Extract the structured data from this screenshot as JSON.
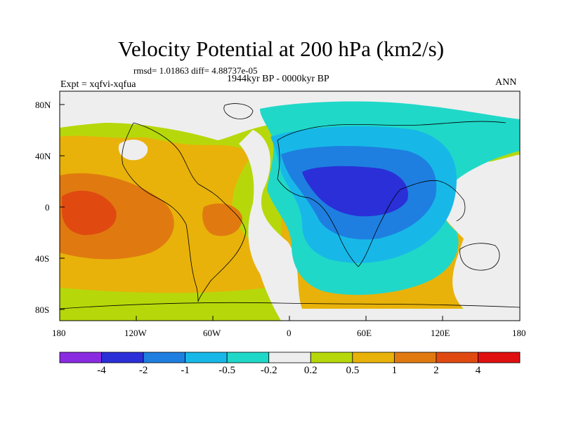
{
  "title": "Velocity Potential at 200 hPa (km2/s)",
  "stats": "rmsd= 1.01863 diff= 4.88737e-05",
  "experiment": "Expt = xqfvi-xqfua",
  "period": "1944kyr BP - 0000kyr BP",
  "season": "ANN",
  "lat_labels": [
    "80N",
    "40N",
    "0",
    "40S",
    "80S"
  ],
  "lon_labels": [
    "180",
    "120W",
    "60W",
    "0",
    "60E",
    "120E",
    "180"
  ],
  "colorbar": {
    "labels": [
      "-4",
      "-2",
      "-1",
      "-0.5",
      "-0.2",
      "0.2",
      "0.5",
      "1",
      "2",
      "4"
    ],
    "colors": [
      "#8a2be2",
      "#2a2fd8",
      "#1e7fe0",
      "#17b8e8",
      "#20d8c8",
      "#eeeeee",
      "#b6d80a",
      "#e8b20a",
      "#e07a10",
      "#e04a10",
      "#e01010"
    ]
  },
  "field_colors": {
    "land_outline": "#000000",
    "neutral": "#eeeeee"
  }
}
